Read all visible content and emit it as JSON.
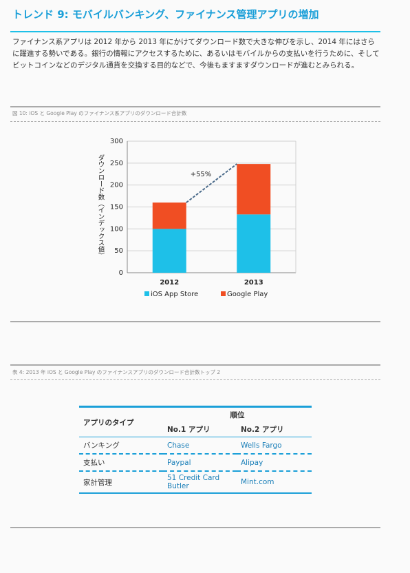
{
  "header": {
    "title": "トレンド 9: モバイルバンキング、ファイナンス管理アプリの増加"
  },
  "paragraph": "ファイナンス系アプリは 2012 年から 2013 年にかけてダウンロード数で大きな伸びを示し、2014 年にはさらに躍進する勢いである。銀行の情報にアクセスするために、あるいはモバイルからの支払いを行うために、そしてビットコインなどのデジタル通貨を交換する目的などで、今後もますますダウンロードが進むとみられる。",
  "figure_caption": "図 10: iOS と Google Play のファイナンス系アプリのダウンロード合計数",
  "chart_data": {
    "type": "stacked-bar",
    "y_label": "ダウンロード数（インデックス値）",
    "annotation": "+55%",
    "categories": [
      "2012",
      "2013"
    ],
    "series": [
      {
        "name": "iOS App Store",
        "color": "#1ec0e8",
        "values": [
          100,
          133
        ]
      },
      {
        "name": "Google Play",
        "color": "#f04e23",
        "values": [
          60,
          115
        ]
      }
    ],
    "ylim": [
      0,
      300
    ],
    "yticks": [
      0,
      50,
      100,
      150,
      200,
      250,
      300
    ],
    "grid": true,
    "legend": "bottom"
  },
  "table_caption": "表 4: 2013 年 iOS と Google Play のファイナンスアプリのダウンロード合計数トップ 2",
  "table": {
    "header_type": "アプリのタイプ",
    "header_rank": "順位",
    "columns": [
      "No.1 アプリ",
      "No.2 アプリ"
    ],
    "rows": [
      [
        "バンキング",
        "Chase",
        "Wells Fargo"
      ],
      [
        "支払い",
        "Paypal",
        "Alipay"
      ],
      [
        "家計管理",
        "51 Credit Card Butler",
        "Mint.com"
      ]
    ]
  }
}
